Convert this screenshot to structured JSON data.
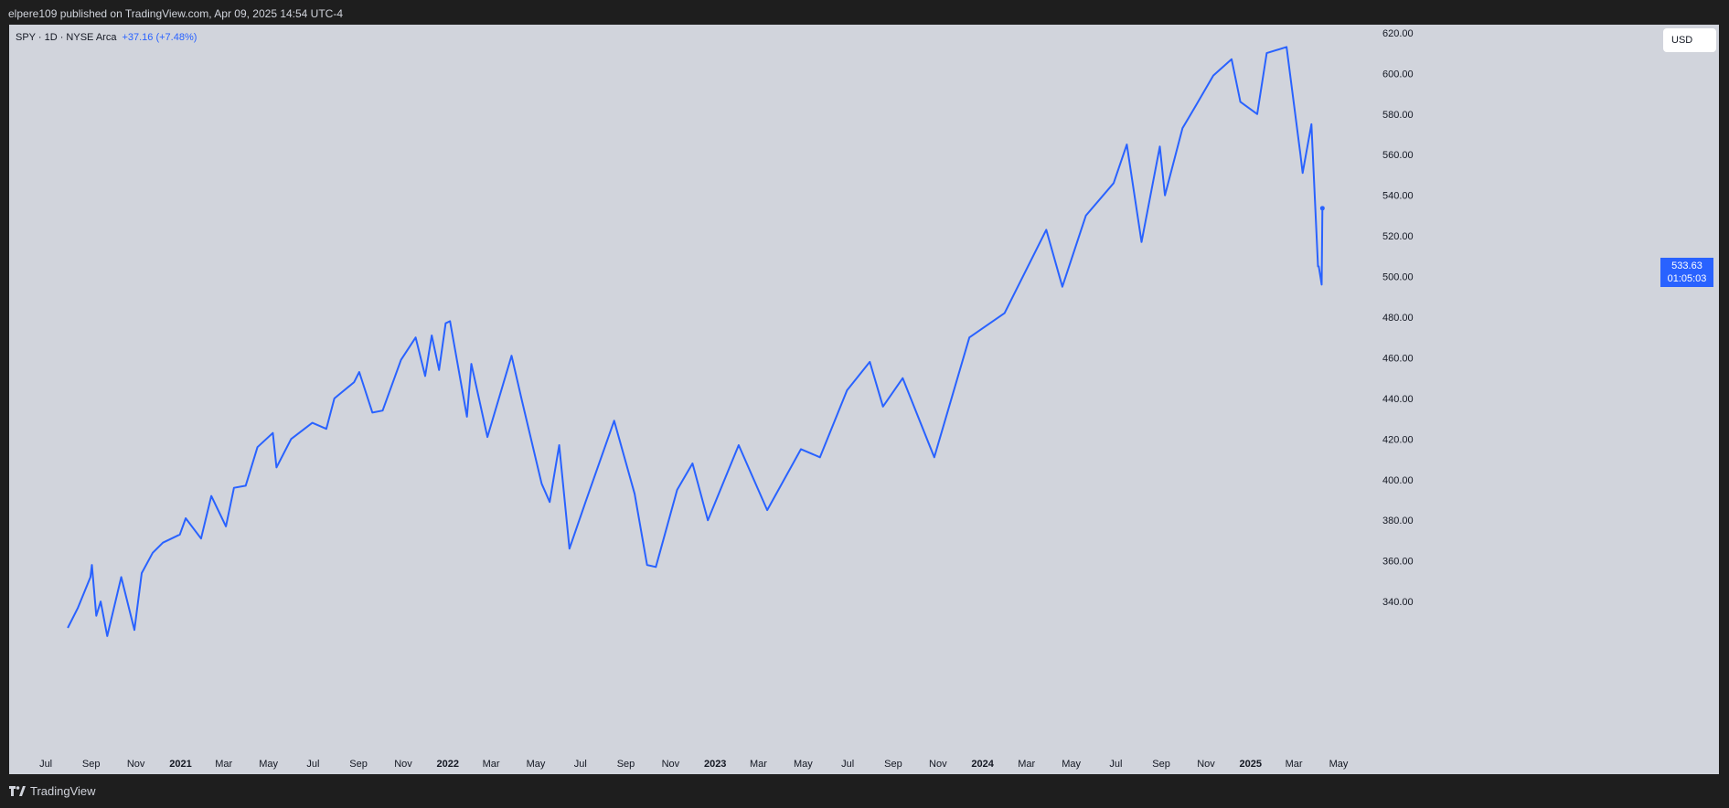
{
  "header": {
    "published": "elpere109 published on TradingView.com, Apr 09, 2025 14:54 UTC-4"
  },
  "legend": {
    "symbol": "SPY · 1D · NYSE Arca",
    "change": "+37.16 (+7.48%)"
  },
  "currency": "USD",
  "price_label": {
    "price": "533.63",
    "countdown": "01:05:03"
  },
  "footer": {
    "brand": "TradingView"
  },
  "colors": {
    "line": "#2962ff",
    "background": "#d1d4dc",
    "frame": "#1e1e1e"
  },
  "chart_data": {
    "type": "line",
    "series": [
      {
        "values": [
          [
            "2020-07-31",
            327
          ],
          [
            "2020-08-14",
            337
          ],
          [
            "2020-08-31",
            352
          ],
          [
            "2020-09-02",
            358
          ],
          [
            "2020-09-08",
            333
          ],
          [
            "2020-09-14",
            340
          ],
          [
            "2020-09-23",
            323
          ],
          [
            "2020-10-12",
            352
          ],
          [
            "2020-10-30",
            326
          ],
          [
            "2020-11-09",
            354
          ],
          [
            "2020-11-24",
            364
          ],
          [
            "2020-12-08",
            369
          ],
          [
            "2020-12-31",
            373
          ],
          [
            "2021-01-08",
            381
          ],
          [
            "2021-01-29",
            371
          ],
          [
            "2021-02-12",
            392
          ],
          [
            "2021-03-04",
            377
          ],
          [
            "2021-03-15",
            396
          ],
          [
            "2021-03-31",
            397
          ],
          [
            "2021-04-16",
            416
          ],
          [
            "2021-05-07",
            423
          ],
          [
            "2021-05-12",
            406
          ],
          [
            "2021-06-01",
            420
          ],
          [
            "2021-06-30",
            428
          ],
          [
            "2021-07-19",
            425
          ],
          [
            "2021-07-30",
            440
          ],
          [
            "2021-08-26",
            448
          ],
          [
            "2021-09-02",
            453
          ],
          [
            "2021-09-20",
            433
          ],
          [
            "2021-10-04",
            434
          ],
          [
            "2021-10-29",
            459
          ],
          [
            "2021-11-18",
            470
          ],
          [
            "2021-12-01",
            451
          ],
          [
            "2021-12-10",
            471
          ],
          [
            "2021-12-20",
            454
          ],
          [
            "2021-12-29",
            477
          ],
          [
            "2022-01-04",
            478
          ],
          [
            "2022-01-27",
            431
          ],
          [
            "2022-02-02",
            457
          ],
          [
            "2022-02-24",
            421
          ],
          [
            "2022-03-29",
            461
          ],
          [
            "2022-04-12",
            439
          ],
          [
            "2022-05-09",
            398
          ],
          [
            "2022-05-20",
            389
          ],
          [
            "2022-06-02",
            417
          ],
          [
            "2022-06-16",
            366
          ],
          [
            "2022-07-08",
            389
          ],
          [
            "2022-08-16",
            429
          ],
          [
            "2022-09-13",
            393
          ],
          [
            "2022-09-30",
            358
          ],
          [
            "2022-10-12",
            357
          ],
          [
            "2022-11-10",
            395
          ],
          [
            "2022-12-01",
            408
          ],
          [
            "2022-12-22",
            380
          ],
          [
            "2023-02-02",
            417
          ],
          [
            "2023-03-13",
            385
          ],
          [
            "2023-04-28",
            415
          ],
          [
            "2023-05-24",
            411
          ],
          [
            "2023-06-30",
            444
          ],
          [
            "2023-07-31",
            458
          ],
          [
            "2023-08-18",
            436
          ],
          [
            "2023-09-14",
            450
          ],
          [
            "2023-10-27",
            411
          ],
          [
            "2023-12-14",
            470
          ],
          [
            "2024-01-31",
            482
          ],
          [
            "2024-03-28",
            523
          ],
          [
            "2024-04-19",
            495
          ],
          [
            "2024-05-21",
            530
          ],
          [
            "2024-06-28",
            546
          ],
          [
            "2024-07-16",
            565
          ],
          [
            "2024-08-05",
            517
          ],
          [
            "2024-08-30",
            564
          ],
          [
            "2024-09-06",
            540
          ],
          [
            "2024-09-30",
            573
          ],
          [
            "2024-10-18",
            584
          ],
          [
            "2024-11-11",
            599
          ],
          [
            "2024-12-06",
            607
          ],
          [
            "2024-12-18",
            586
          ],
          [
            "2025-01-10",
            580
          ],
          [
            "2025-01-23",
            610
          ],
          [
            "2025-02-19",
            613
          ],
          [
            "2025-03-10",
            560
          ],
          [
            "2025-03-13",
            551
          ],
          [
            "2025-03-25",
            575
          ],
          [
            "2025-04-03",
            505
          ],
          [
            "2025-04-04",
            505
          ],
          [
            "2025-04-08",
            496
          ],
          [
            "2025-04-09",
            533.63
          ]
        ]
      }
    ],
    "y_ticks": [
      "620.00",
      "600.00",
      "580.00",
      "560.00",
      "540.00",
      "520.00",
      "500.00",
      "480.00",
      "460.00",
      "440.00",
      "420.00",
      "400.00",
      "380.00",
      "360.00",
      "340.00"
    ],
    "ylim": [
      327,
      624
    ],
    "x_ticks": [
      [
        "2020-07-01",
        "Jul"
      ],
      [
        "2020-09-01",
        "Sep"
      ],
      [
        "2020-11-01",
        "Nov"
      ],
      [
        "2021-01-01",
        "2021"
      ],
      [
        "2021-03-01",
        "Mar"
      ],
      [
        "2021-05-01",
        "May"
      ],
      [
        "2021-07-01",
        "Jul"
      ],
      [
        "2021-09-01",
        "Sep"
      ],
      [
        "2021-11-01",
        "Nov"
      ],
      [
        "2022-01-01",
        "2022"
      ],
      [
        "2022-03-01",
        "Mar"
      ],
      [
        "2022-05-01",
        "May"
      ],
      [
        "2022-07-01",
        "Jul"
      ],
      [
        "2022-09-01",
        "Sep"
      ],
      [
        "2022-11-01",
        "Nov"
      ],
      [
        "2023-01-01",
        "2023"
      ],
      [
        "2023-03-01",
        "Mar"
      ],
      [
        "2023-05-01",
        "May"
      ],
      [
        "2023-07-01",
        "Jul"
      ],
      [
        "2023-09-01",
        "Sep"
      ],
      [
        "2023-11-01",
        "Nov"
      ],
      [
        "2024-01-01",
        "2024"
      ],
      [
        "2024-03-01",
        "Mar"
      ],
      [
        "2024-05-01",
        "May"
      ],
      [
        "2024-07-01",
        "Jul"
      ],
      [
        "2024-09-01",
        "Sep"
      ],
      [
        "2024-11-01",
        "Nov"
      ],
      [
        "2025-01-01",
        "2025"
      ],
      [
        "2025-03-01",
        "Mar"
      ],
      [
        "2025-05-01",
        "May"
      ]
    ],
    "xlim": [
      "2020-05-12",
      "2025-06-15"
    ],
    "grid": false
  }
}
